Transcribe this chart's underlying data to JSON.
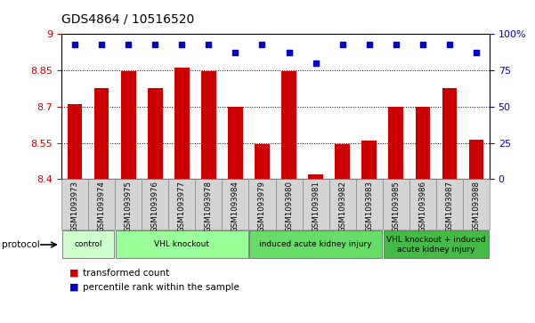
{
  "title": "GDS4864 / 10516520",
  "samples": [
    "GSM1093973",
    "GSM1093974",
    "GSM1093975",
    "GSM1093976",
    "GSM1093977",
    "GSM1093978",
    "GSM1093984",
    "GSM1093979",
    "GSM1093980",
    "GSM1093981",
    "GSM1093982",
    "GSM1093983",
    "GSM1093985",
    "GSM1093986",
    "GSM1093987",
    "GSM1093988"
  ],
  "bar_values": [
    8.71,
    8.775,
    8.845,
    8.775,
    8.862,
    8.845,
    8.7,
    8.545,
    8.845,
    8.42,
    8.545,
    8.558,
    8.7,
    8.7,
    8.775,
    8.565
  ],
  "percentile_values": [
    93,
    93,
    93,
    93,
    93,
    93,
    87,
    93,
    87,
    80,
    93,
    93,
    93,
    93,
    93,
    87
  ],
  "bar_color": "#cc0000",
  "percentile_color": "#0000cc",
  "ylim_left": [
    8.4,
    9.0
  ],
  "ylim_right": [
    0,
    100
  ],
  "yticks_left": [
    8.4,
    8.55,
    8.7,
    8.85,
    9.0
  ],
  "yticks_right": [
    0,
    25,
    50,
    75,
    100
  ],
  "ytick_labels_left": [
    "8.4",
    "8.55",
    "8.7",
    "8.85",
    "9"
  ],
  "ytick_labels_right": [
    "0",
    "25",
    "50",
    "75",
    "100%"
  ],
  "groups": [
    {
      "label": "control",
      "start": 0,
      "end": 2,
      "color": "#ccffcc"
    },
    {
      "label": "VHL knockout",
      "start": 2,
      "end": 7,
      "color": "#99ff99"
    },
    {
      "label": "induced acute kidney injury",
      "start": 7,
      "end": 12,
      "color": "#66dd66"
    },
    {
      "label": "VHL knockout + induced\nacute kidney injury",
      "start": 12,
      "end": 16,
      "color": "#44bb44"
    }
  ],
  "legend_bar_label": "transformed count",
  "legend_pct_label": "percentile rank within the sample",
  "protocol_label": "protocol",
  "bg_color": "#ffffff",
  "tick_color_left": "#cc0000",
  "tick_color_right": "#0000cc",
  "cell_bg": "#d4d4d4"
}
